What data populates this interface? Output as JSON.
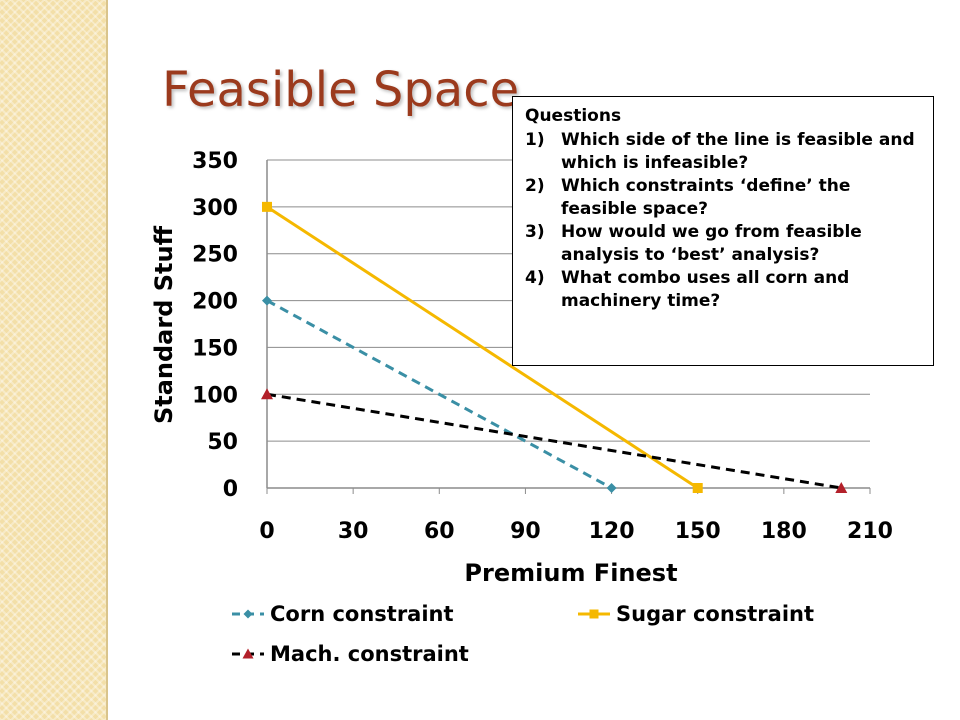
{
  "slide": {
    "title": "Feasible Space"
  },
  "questions": {
    "heading": "Questions",
    "items": [
      {
        "num": "1)",
        "text": "Which side of the line is feasible and which is infeasible?"
      },
      {
        "num": "2)",
        "text": "Which constraints ‘define’ the feasible space?"
      },
      {
        "num": "3)",
        "text": "How would we go from feasible analysis to ‘best’ analysis?"
      },
      {
        "num": "4)",
        "text": "What combo uses all corn and machinery time?"
      }
    ]
  },
  "chart_data": {
    "type": "line",
    "xlabel": "Premium Finest",
    "ylabel": "Standard Stuff",
    "xlim": [
      0,
      210
    ],
    "ylim": [
      0,
      350
    ],
    "xticks": [
      "0",
      "30",
      "60",
      "90",
      "120",
      "150",
      "180",
      "210"
    ],
    "yticks": [
      "0",
      "50",
      "100",
      "150",
      "200",
      "250",
      "300",
      "350"
    ],
    "grid": "horizontal",
    "legend_position": "bottom",
    "series": [
      {
        "name": "Corn constraint",
        "x": [
          0,
          120
        ],
        "y": [
          200,
          0
        ],
        "color": "#3a8fa5",
        "dash": "dashed",
        "marker": "diamond"
      },
      {
        "name": "Sugar constraint",
        "x": [
          0,
          150
        ],
        "y": [
          300,
          0
        ],
        "color": "#f5b800",
        "dash": "solid",
        "marker": "square"
      },
      {
        "name": "Mach. constraint",
        "x": [
          0,
          200
        ],
        "y": [
          100,
          0
        ],
        "color": "#000000",
        "marker_color": "#b3202a",
        "dash": "dashed",
        "marker": "triangle"
      }
    ]
  }
}
